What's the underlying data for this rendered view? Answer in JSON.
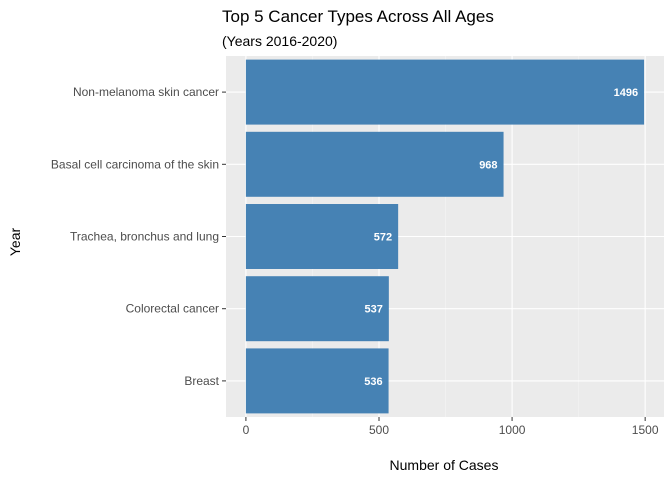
{
  "chart_data": {
    "type": "bar",
    "orientation": "horizontal",
    "title": "Top 5 Cancer Types Across All Ages",
    "subtitle": "(Years 2016-2020)",
    "xlabel": "Number of Cases",
    "ylabel": "Year",
    "categories": [
      "Non-melanoma skin cancer",
      "Basal cell carcinoma of the skin",
      "Trachea, bronchus and lung",
      "Colorectal cancer",
      "Breast"
    ],
    "values": [
      1496,
      968,
      572,
      537,
      536
    ],
    "data_labels": [
      "1496",
      "968",
      "572",
      "537",
      "536"
    ],
    "xlim": [
      0,
      1500
    ],
    "xticks": [
      0,
      500,
      1000,
      1500
    ],
    "xtick_labels": [
      "0",
      "500",
      "1000",
      "1500"
    ],
    "grid": true,
    "legend": "none",
    "colors": {
      "bar": "#4682b4",
      "panel": "#ebebeb",
      "grid_major": "#ffffff",
      "grid_minor": "#f5f5f5"
    }
  }
}
